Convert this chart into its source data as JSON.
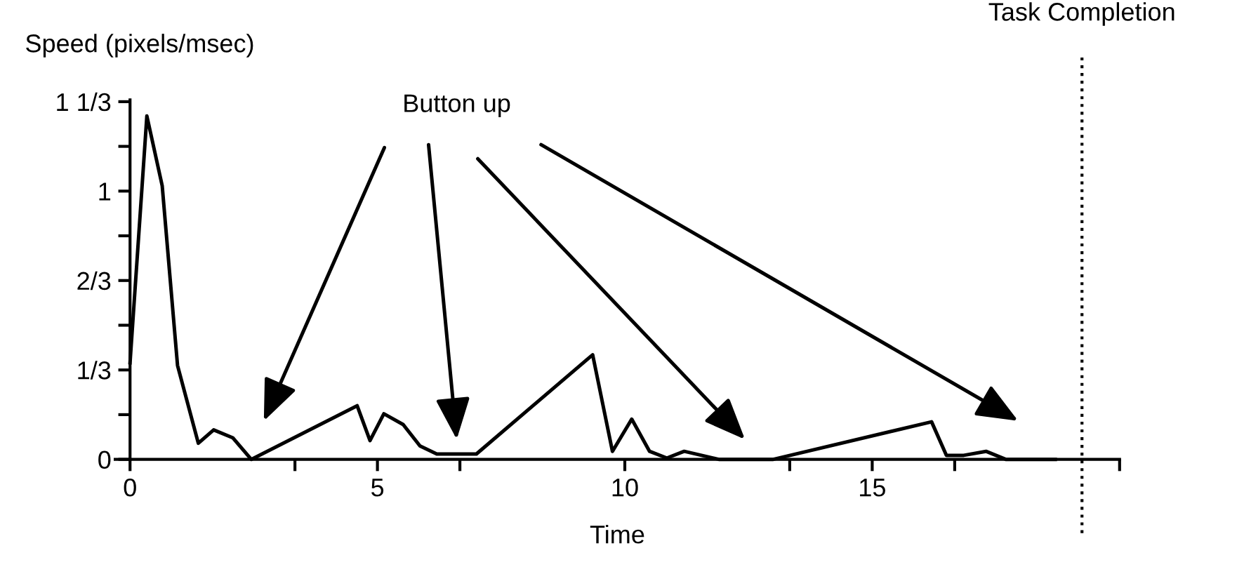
{
  "chart_data": {
    "type": "line",
    "xlabel": "Time",
    "ylabel": "Speed (pixels/msec)",
    "x": [
      0,
      0.34,
      0.65,
      0.96,
      1.38,
      1.69,
      2.08,
      2.45,
      4.59,
      4.85,
      5.13,
      5.52,
      5.86,
      6.2,
      6.68,
      7.0,
      9.35,
      9.75,
      10.14,
      10.5,
      10.85,
      11.2,
      11.9,
      13.0,
      16.2,
      16.5,
      16.85,
      17.3,
      17.7,
      18.4,
      18.7
    ],
    "series": [
      {
        "color": "#000000",
        "values": [
          0.36,
          1.28,
          1.02,
          0.35,
          0.06,
          0.11,
          0.08,
          0,
          0.2,
          0.07,
          0.17,
          0.13,
          0.05,
          0.02,
          0.02,
          0.02,
          0.39,
          0.03,
          0.15,
          0.03,
          0.005,
          0.03,
          0,
          0,
          0.14,
          0.015,
          0.015,
          0.03,
          0,
          0,
          0
        ]
      }
    ],
    "xlim": [
      -0.3,
      20
    ],
    "ylim": [
      -0.04,
      1.34
    ],
    "xticks": [
      {
        "value": 0,
        "label": "0"
      },
      {
        "value": 3.333,
        "label": null
      },
      {
        "value": 5,
        "label": "5"
      },
      {
        "value": 6.667,
        "label": null
      },
      {
        "value": 10,
        "label": "10"
      },
      {
        "value": 13.333,
        "label": null
      },
      {
        "value": 15,
        "label": "15"
      },
      {
        "value": 16.667,
        "label": null
      },
      {
        "value": 20,
        "label": null
      }
    ],
    "yticks": [
      {
        "value": 0,
        "label": "0"
      },
      {
        "value": 0.1667,
        "label": null
      },
      {
        "value": 0.3333,
        "label": "1/3"
      },
      {
        "value": 0.5,
        "label": null
      },
      {
        "value": 0.6667,
        "label": "2/3"
      },
      {
        "value": 0.8333,
        "label": null
      },
      {
        "value": 1,
        "label": "1"
      },
      {
        "value": 1.1667,
        "label": null
      },
      {
        "value": 1.3333,
        "label": "1 1/3"
      }
    ],
    "ref_lines": [
      {
        "axis": "x",
        "value": 19.24,
        "label": "Task Completion",
        "color": "#000000",
        "line_style": "dotted"
      }
    ],
    "annotations": [
      "Button up"
    ],
    "grid": false,
    "legend": false,
    "marker": "none",
    "line_style": "solid"
  }
}
